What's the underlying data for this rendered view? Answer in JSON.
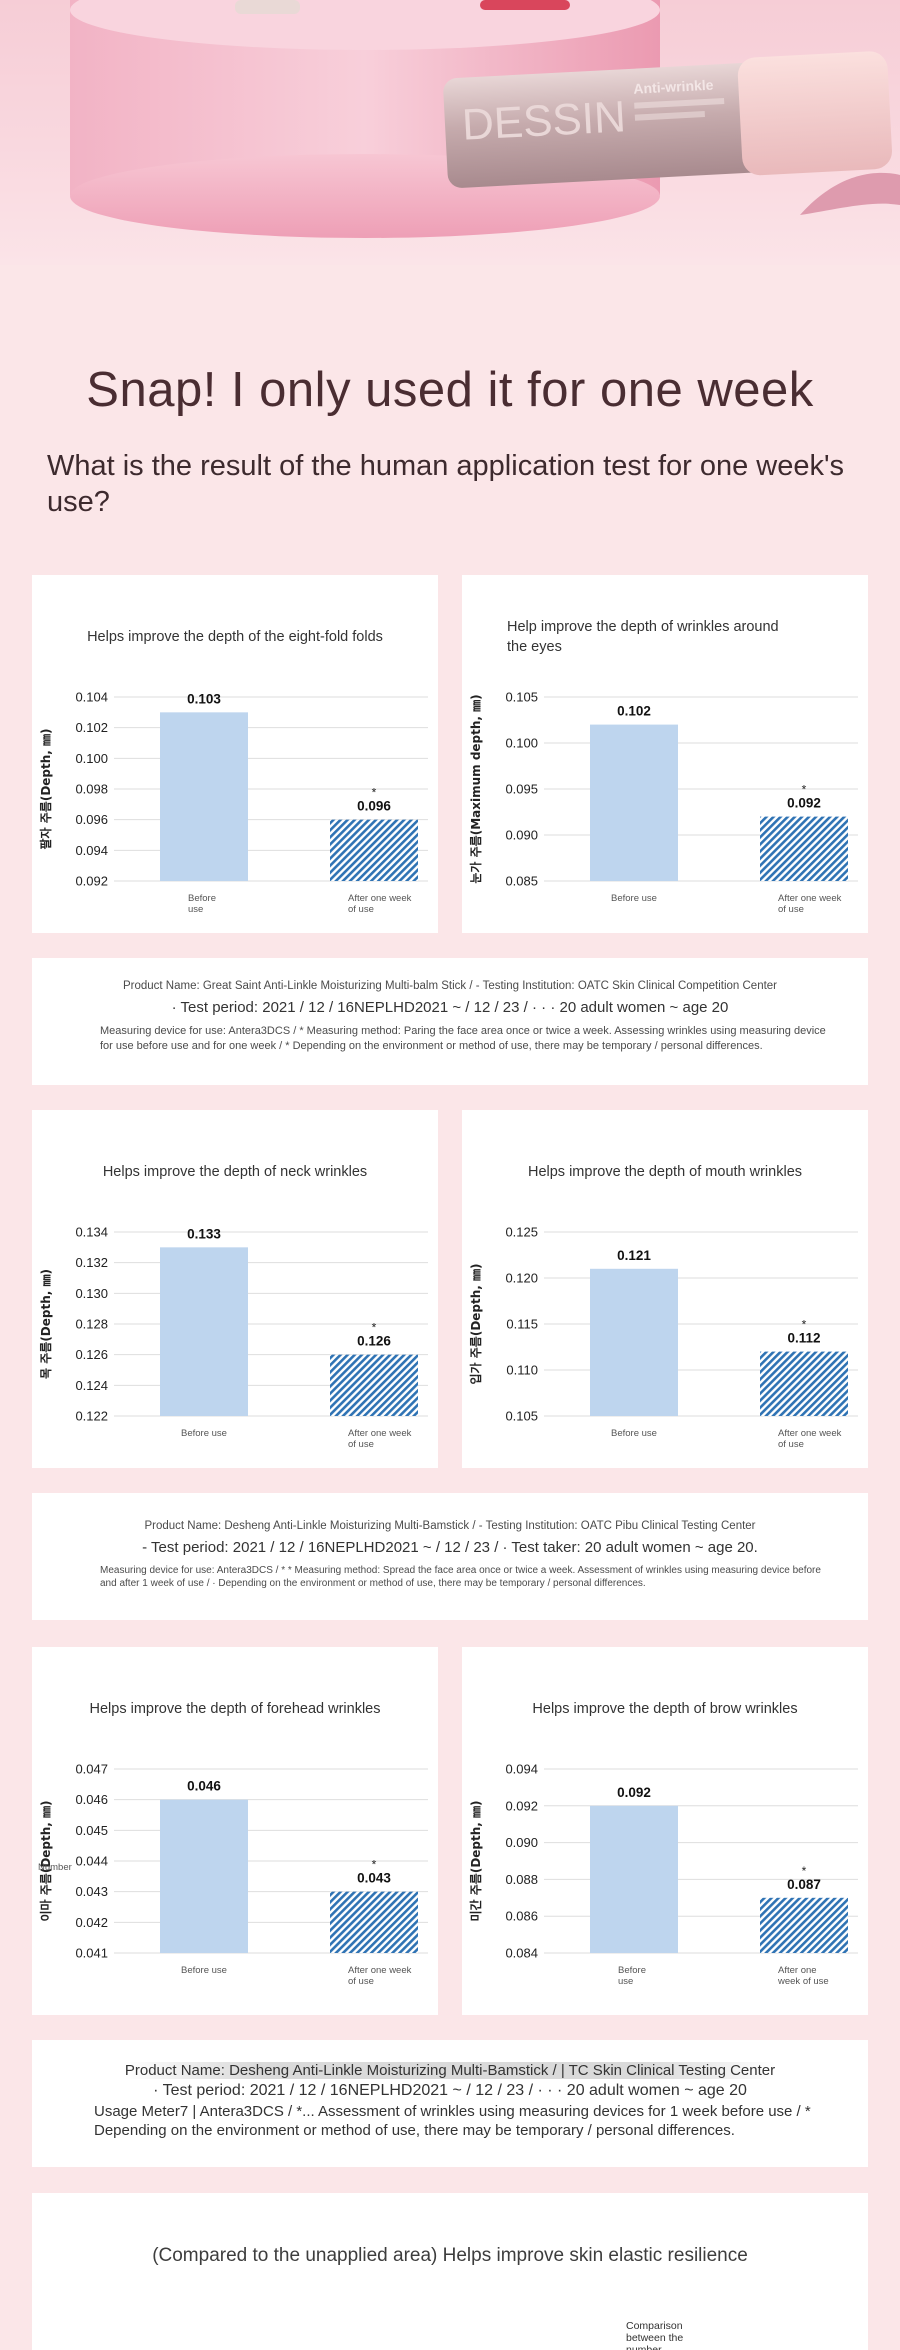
{
  "colors": {
    "page_bg": "#fbe6e8",
    "bar_before": "#bed5ee",
    "bar_after": "#2f73b4",
    "product_silver": "#c9b4b4"
  },
  "hero": {
    "product_logo_text": "DESSIN",
    "product_label_text": "Anti-wrinkle"
  },
  "headline": "Snap! I only used it for one week",
  "subhead": "What is the result of the human application test for one week's use?",
  "charts": [
    {
      "title": [
        "Helps improve the depth of the eight-fold folds"
      ],
      "ylabel": "팔자 주름(Depth, ㎜)",
      "ticks": [
        "0.104",
        "0.102",
        "0.100",
        "0.098",
        "0.096",
        "0.094",
        "0.092"
      ],
      "ylim": [
        0.092,
        0.104
      ],
      "categories": [
        [
          "Before",
          "use"
        ],
        [
          "After one week",
          "of use"
        ]
      ],
      "values": [
        0.103,
        0.096
      ],
      "value_labels": [
        "0.103",
        "0.096"
      ],
      "star": "*"
    },
    {
      "title": [
        "Help improve the depth of wrinkles around",
        "the eyes"
      ],
      "ylabel": "눈가 주름(Maximum depth, ㎜)",
      "ticks": [
        "0.105",
        "0.100",
        "0.095",
        "0.090",
        "0.085"
      ],
      "ylim": [
        0.085,
        0.105
      ],
      "categories": [
        [
          "Before use"
        ],
        [
          "After one week",
          "of use"
        ]
      ],
      "values": [
        0.102,
        0.092
      ],
      "value_labels": [
        "0.102",
        "0.092"
      ],
      "star": "*"
    },
    {
      "title": [
        "Helps improve the depth of neck wrinkles"
      ],
      "ylabel": "목 주름(Depth, ㎜)",
      "ticks": [
        "0.134",
        "0.132",
        "0.130",
        "0.128",
        "0.126",
        "0.124",
        "0.122"
      ],
      "ylim": [
        0.122,
        0.134
      ],
      "categories": [
        [
          "Before use"
        ],
        [
          "After one week",
          "of use"
        ]
      ],
      "values": [
        0.133,
        0.126
      ],
      "value_labels": [
        "0.133",
        "0.126"
      ],
      "star": "*"
    },
    {
      "title": [
        "Helps improve the depth of mouth wrinkles"
      ],
      "ylabel": "입가 주름(Depth, ㎜)",
      "ticks": [
        "0.125",
        "0.120",
        "0.115",
        "0.110",
        "0.105"
      ],
      "ylim": [
        0.105,
        0.125
      ],
      "categories": [
        [
          "Before use"
        ],
        [
          "After one week",
          "of use"
        ]
      ],
      "values": [
        0.121,
        0.112
      ],
      "value_labels": [
        "0.121",
        "0.112"
      ],
      "star": "*"
    },
    {
      "title": [
        "Helps improve the depth of forehead wrinkles"
      ],
      "ylabel": "이마 주름(Depth, ㎜)",
      "ticks": [
        "0.047",
        "0.046",
        "0.045",
        "0.044",
        "0.043",
        "0.042",
        "0.041"
      ],
      "ylim": [
        0.041,
        0.047
      ],
      "categories": [
        [
          "Before use"
        ],
        [
          "After one week",
          "of use"
        ]
      ],
      "values": [
        0.046,
        0.043
      ],
      "value_labels": [
        "0.046",
        "0.043"
      ],
      "star": "*",
      "extra_label": "Number"
    },
    {
      "title": [
        "Helps improve the depth of brow wrinkles"
      ],
      "ylabel": "미간 주름(Depth, ㎜)",
      "ticks": [
        "0.094",
        "0.092",
        "0.090",
        "0.088",
        "0.086",
        "0.084"
      ],
      "ylim": [
        0.084,
        0.094
      ],
      "categories": [
        [
          "Before",
          "use"
        ],
        [
          "After one",
          "week of use"
        ]
      ],
      "values": [
        0.092,
        0.087
      ],
      "value_labels": [
        "0.092",
        "0.087"
      ],
      "star": "*"
    }
  ],
  "chart_data": [
    {
      "type": "bar",
      "title": "Helps improve the depth of the eight-fold folds",
      "ylabel": "팔자 주름(Depth, ㎜)",
      "categories": [
        "Before use",
        "After one week of use"
      ],
      "values": [
        0.103,
        0.096
      ],
      "ylim": [
        0.092,
        0.104
      ]
    },
    {
      "type": "bar",
      "title": "Help improve the depth of wrinkles around the eyes",
      "ylabel": "눈가 주름(Maximum depth, ㎜)",
      "categories": [
        "Before use",
        "After one week of use"
      ],
      "values": [
        0.102,
        0.092
      ],
      "ylim": [
        0.085,
        0.105
      ]
    },
    {
      "type": "bar",
      "title": "Helps improve the depth of neck wrinkles",
      "ylabel": "목 주름(Depth, ㎜)",
      "categories": [
        "Before use",
        "After one week of use"
      ],
      "values": [
        0.133,
        0.126
      ],
      "ylim": [
        0.122,
        0.134
      ]
    },
    {
      "type": "bar",
      "title": "Helps improve the depth of mouth wrinkles",
      "ylabel": "입가 주름(Depth, ㎜)",
      "categories": [
        "Before use",
        "After one week of use"
      ],
      "values": [
        0.121,
        0.112
      ],
      "ylim": [
        0.105,
        0.125
      ]
    },
    {
      "type": "bar",
      "title": "Helps improve the depth of forehead wrinkles",
      "ylabel": "이마 주름(Depth, ㎜)",
      "categories": [
        "Before use",
        "After one week of use"
      ],
      "values": [
        0.046,
        0.043
      ],
      "ylim": [
        0.041,
        0.047
      ]
    },
    {
      "type": "bar",
      "title": "Helps improve the depth of brow wrinkles",
      "ylabel": "미간 주름(Depth, ㎜)",
      "categories": [
        "Before use",
        "After one week of use"
      ],
      "values": [
        0.092,
        0.087
      ],
      "ylim": [
        0.084,
        0.094
      ]
    }
  ],
  "notes": [
    {
      "line1": "Product Name: Great Saint Anti-Linkle Moisturizing Multi-balm Stick / - Testing Institution: OATC Skin Clinical Competition Center",
      "line2": "· Test period: 2021 / 12 / 16NEPLHD2021 ~ / 12 / 23 / · · · 20 adult women ~ age 20",
      "line3": "Measuring device for use: Antera3DCS / * Measuring method: Paring the face area once or twice a week. Assessing wrinkles using measuring device for use before use and for one week / * Depending on the environment or method of use, there may be temporary / personal differences."
    },
    {
      "line1": "Product Name: Desheng Anti-Linkle Moisturizing Multi-Bamstick / - Testing Institution: OATC Pibu Clinical Testing Center",
      "line2": "- Test period: 2021 / 12 / 16NEPLHD2021 ~ / 12 / 23 / · Test taker: 20 adult women ~ age 20.",
      "line3": "Measuring device for use: Antera3DCS / * * Measuring method: Spread the face area once or twice a week. Assessment of wrinkles using measuring device before and after 1 week of use / · Depending on the environment or method of use, there may be temporary / personal differences."
    },
    {
      "line1": "Product Name: Desheng Anti-Linkle Moisturizing Multi-Bamstick / | TC Skin Clinical Testing Center",
      "line2": "· Test period: 2021 / 12 / 16NEPLHD2021 ~ / 12 / 23 / · · · 20 adult women ~ age 20",
      "line3": "Usage Meter7 | Antera3DCS / *... Assessment of wrinkles using measuring devices for 1 week before use / * Depending on the environment or method of use, there may be temporary / personal differences."
    }
  ],
  "final": {
    "title": "(Compared to the unapplied area) Helps improve skin elastic resilience",
    "caption_lines": [
      "Comparison",
      "between the",
      "number"
    ]
  }
}
